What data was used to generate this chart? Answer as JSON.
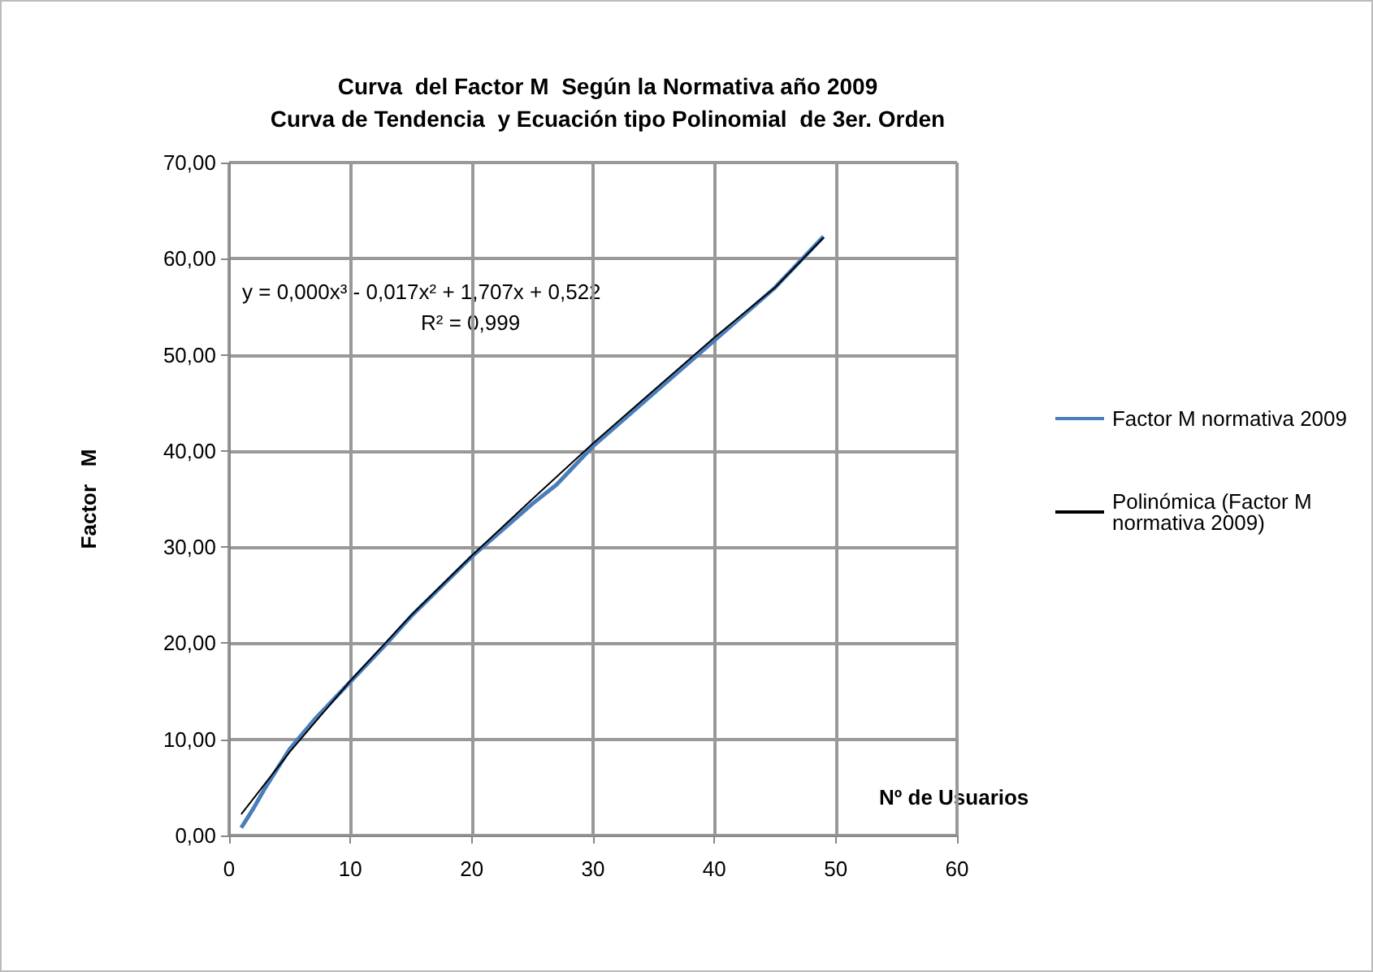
{
  "chart_data": {
    "type": "line",
    "title": "Curva  del Factor M  Según la Normativa año 2009",
    "subtitle": "Curva de Tendencia  y Ecuación tipo Polinomial  de 3er. Orden",
    "xlabel": "Nº de Usuarios",
    "ylabel": "Factor   M",
    "annotations": [
      "y = 0,000x³ - 0,017x² + 1,707x + 0,522",
      "R² = 0,999"
    ],
    "series": [
      {
        "name": "Factor M normativa 2009",
        "color": "#4a7ebb",
        "x": [
          1,
          2,
          3,
          4,
          5,
          7,
          10,
          13,
          15,
          20,
          25,
          27,
          30,
          35,
          40,
          45,
          49
        ],
        "values": [
          0.8,
          2.8,
          5,
          7,
          9,
          12,
          16,
          20,
          22.8,
          29,
          34.5,
          36.5,
          40.5,
          46,
          51.5,
          57,
          62.3
        ]
      },
      {
        "name": "Polinómica (Factor M normativa 2009)",
        "color": "#000000",
        "x": [
          1,
          5,
          10,
          15,
          20,
          25,
          30,
          35,
          40,
          45,
          49
        ],
        "values": [
          2.2,
          8.7,
          16.1,
          22.9,
          29.1,
          35,
          40.8,
          46.3,
          51.8,
          57,
          62.2
        ]
      }
    ],
    "xlim": [
      0,
      60
    ],
    "xticks": [
      0,
      10,
      20,
      30,
      40,
      50,
      60
    ],
    "ylim": [
      0,
      70
    ],
    "yticks": [
      {
        "value": 0,
        "label": "0,00"
      },
      {
        "value": 10,
        "label": "10,00"
      },
      {
        "value": 20,
        "label": "20,00"
      },
      {
        "value": 30,
        "label": "30,00"
      },
      {
        "value": 40,
        "label": "40,00"
      },
      {
        "value": 50,
        "label": "50,00"
      },
      {
        "value": 60,
        "label": "60,00"
      },
      {
        "value": 70,
        "label": "70,00"
      }
    ],
    "grid": true,
    "legend": "right",
    "marker": "none",
    "line_style": "solid"
  }
}
